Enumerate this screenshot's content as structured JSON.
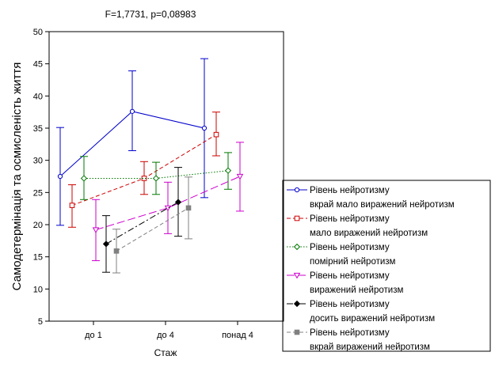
{
  "chart_data": {
    "type": "line",
    "title": "F=1,7731, p=0,08983",
    "xlabel": "Стаж",
    "ylabel": "Самодетермінація та осмисленість життя",
    "categories": [
      "до 1",
      "до 4",
      "понад 4"
    ],
    "ylim": [
      5,
      50
    ],
    "yticks": [
      5,
      10,
      15,
      20,
      25,
      30,
      35,
      40,
      45,
      50
    ],
    "grid": false,
    "legend_position": "right",
    "series": [
      {
        "name_line1": "Рівень нейротизму",
        "name_line2": "вкрай мало виражений нейротизм",
        "color": "#0000cc",
        "dash": "solid",
        "marker": "circle-open",
        "mean": [
          27.5,
          37.6,
          35.0
        ],
        "upper": [
          35.1,
          43.9,
          45.8
        ],
        "lower": [
          19.9,
          31.5,
          24.2
        ]
      },
      {
        "name_line1": "Рівень нейротизму",
        "name_line2": "мало виражений нейротизм",
        "color": "#cc0000",
        "dash": "dashed",
        "marker": "square-open",
        "mean": [
          23.0,
          27.2,
          34.0
        ],
        "upper": [
          26.2,
          29.8,
          37.5
        ],
        "lower": [
          19.6,
          24.7,
          30.7
        ]
      },
      {
        "name_line1": "Рівень нейротизму",
        "name_line2": "помірний нейротизм",
        "color": "#007700",
        "dash": "dotted",
        "marker": "diamond-open",
        "mean": [
          27.2,
          27.2,
          28.4
        ],
        "upper": [
          30.6,
          29.7,
          31.2
        ],
        "lower": [
          23.9,
          24.7,
          25.5
        ]
      },
      {
        "name_line1": "Рівень нейротизму",
        "name_line2": "виражений нейротизм",
        "color": "#cc00cc",
        "dash": "longdash",
        "marker": "triangle-open",
        "mean": [
          19.2,
          22.6,
          27.5
        ],
        "upper": [
          23.9,
          26.6,
          32.8
        ],
        "lower": [
          14.4,
          18.6,
          22.1
        ]
      },
      {
        "name_line1": "Рівень нейротизму",
        "name_line2": "досить виражений нейротизм",
        "color": "#000000",
        "dash": "dashdot",
        "marker": "diamond-filled",
        "mean": [
          17.0,
          23.5
        ],
        "upper": [
          21.4,
          28.9
        ],
        "lower": [
          12.6,
          18.2
        ]
      },
      {
        "name_line1": "Рівень нейротизму",
        "name_line2": "вкрай виражений нейротизм",
        "color": "#808080",
        "dash": "dashed",
        "marker": "square-filled",
        "mean": [
          15.9,
          22.6
        ],
        "upper": [
          19.3,
          27.4
        ],
        "lower": [
          12.5,
          17.8
        ]
      }
    ]
  }
}
